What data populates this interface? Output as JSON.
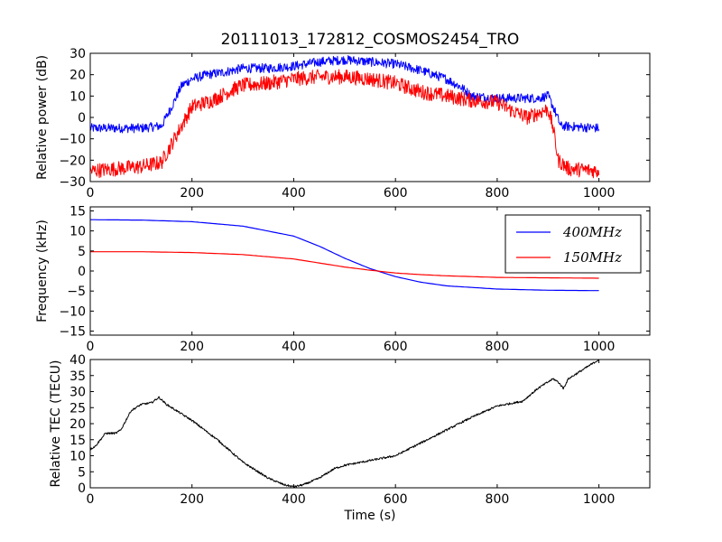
{
  "title": "20111013_172812_COSMOS2454_TRO",
  "colors": {
    "blue": "#0000ff",
    "red": "#ff0000",
    "black": "#000000"
  },
  "chart_data": [
    {
      "type": "line",
      "ylabel": "Relative power (dB)",
      "xlim": [
        0,
        1100
      ],
      "ylim": [
        -30,
        30
      ],
      "xticks": [
        0,
        200,
        400,
        600,
        800,
        1000
      ],
      "yticks": [
        -30,
        -20,
        -10,
        0,
        10,
        20,
        30
      ],
      "series": [
        {
          "color": "#0000ff",
          "noise": 2.2,
          "points": [
            [
              0,
              -5
            ],
            [
              100,
              -5
            ],
            [
              140,
              -4
            ],
            [
              160,
              5
            ],
            [
              180,
              15
            ],
            [
              200,
              18
            ],
            [
              230,
              20
            ],
            [
              260,
              21
            ],
            [
              300,
              23
            ],
            [
              350,
              23
            ],
            [
              400,
              24
            ],
            [
              450,
              26
            ],
            [
              500,
              27
            ],
            [
              550,
              26
            ],
            [
              600,
              25
            ],
            [
              650,
              22
            ],
            [
              700,
              18
            ],
            [
              730,
              14
            ],
            [
              750,
              10
            ],
            [
              800,
              9
            ],
            [
              850,
              9
            ],
            [
              880,
              9
            ],
            [
              900,
              10
            ],
            [
              910,
              5
            ],
            [
              925,
              -4
            ],
            [
              1000,
              -5
            ]
          ]
        },
        {
          "color": "#ff0000",
          "noise": 3.5,
          "points": [
            [
              0,
              -25
            ],
            [
              50,
              -24
            ],
            [
              100,
              -23
            ],
            [
              140,
              -21
            ],
            [
              170,
              -8
            ],
            [
              200,
              5
            ],
            [
              240,
              8
            ],
            [
              280,
              13
            ],
            [
              300,
              15
            ],
            [
              350,
              16
            ],
            [
              400,
              18
            ],
            [
              450,
              19
            ],
            [
              500,
              19
            ],
            [
              550,
              18
            ],
            [
              600,
              16
            ],
            [
              650,
              12
            ],
            [
              700,
              10
            ],
            [
              750,
              8
            ],
            [
              800,
              7
            ],
            [
              830,
              3
            ],
            [
              860,
              0
            ],
            [
              900,
              4
            ],
            [
              910,
              -5
            ],
            [
              920,
              -20
            ],
            [
              940,
              -24
            ],
            [
              1000,
              -25
            ]
          ]
        }
      ]
    },
    {
      "type": "line",
      "ylabel": "Frequency (kHz)",
      "xlim": [
        0,
        1100
      ],
      "ylim": [
        -16,
        16
      ],
      "xticks": [
        0,
        200,
        400,
        600,
        800,
        1000
      ],
      "yticks": [
        -15,
        -10,
        -5,
        0,
        5,
        10,
        15
      ],
      "legend_position": "top-right",
      "series": [
        {
          "name": "400MHz",
          "color": "#0000ff",
          "points": [
            [
              0,
              12.8
            ],
            [
              100,
              12.7
            ],
            [
              200,
              12.3
            ],
            [
              300,
              11.2
            ],
            [
              400,
              8.7
            ],
            [
              450,
              6.2
            ],
            [
              500,
              3.2
            ],
            [
              550,
              0.6
            ],
            [
              600,
              -1.4
            ],
            [
              650,
              -2.8
            ],
            [
              700,
              -3.7
            ],
            [
              800,
              -4.5
            ],
            [
              900,
              -4.8
            ],
            [
              1000,
              -4.9
            ]
          ]
        },
        {
          "name": "150MHz",
          "color": "#ff0000",
          "points": [
            [
              0,
              4.8
            ],
            [
              100,
              4.8
            ],
            [
              200,
              4.6
            ],
            [
              300,
              4.1
            ],
            [
              400,
              3.0
            ],
            [
              450,
              2.0
            ],
            [
              500,
              1.0
            ],
            [
              550,
              0.2
            ],
            [
              600,
              -0.5
            ],
            [
              650,
              -0.9
            ],
            [
              700,
              -1.2
            ],
            [
              800,
              -1.6
            ],
            [
              900,
              -1.7
            ],
            [
              1000,
              -1.8
            ]
          ]
        }
      ]
    },
    {
      "type": "line",
      "ylabel": "Relative TEC (TECU)",
      "xlabel": "Time (s)",
      "xlim": [
        0,
        1100
      ],
      "ylim": [
        0,
        40
      ],
      "xticks": [
        0,
        200,
        400,
        600,
        800,
        1000
      ],
      "yticks": [
        0,
        5,
        10,
        15,
        20,
        25,
        30,
        35,
        40
      ],
      "series": [
        {
          "color": "#000000",
          "noise": 0.3,
          "points": [
            [
              0,
              12
            ],
            [
              10,
              13
            ],
            [
              20,
              15
            ],
            [
              30,
              17
            ],
            [
              50,
              17
            ],
            [
              60,
              18
            ],
            [
              70,
              21
            ],
            [
              80,
              24
            ],
            [
              100,
              26
            ],
            [
              120,
              26.5
            ],
            [
              135,
              28.2
            ],
            [
              150,
              26
            ],
            [
              200,
              21
            ],
            [
              250,
              15
            ],
            [
              300,
              8
            ],
            [
              350,
              3
            ],
            [
              380,
              1
            ],
            [
              400,
              0.3
            ],
            [
              420,
              1
            ],
            [
              450,
              3
            ],
            [
              480,
              6
            ],
            [
              500,
              7
            ],
            [
              550,
              8.5
            ],
            [
              600,
              10
            ],
            [
              650,
              14
            ],
            [
              700,
              18
            ],
            [
              750,
              22
            ],
            [
              800,
              25.5
            ],
            [
              850,
              27
            ],
            [
              880,
              31
            ],
            [
              900,
              33
            ],
            [
              910,
              34
            ],
            [
              920,
              33
            ],
            [
              930,
              31
            ],
            [
              940,
              34
            ],
            [
              960,
              36
            ],
            [
              980,
              38
            ],
            [
              1000,
              40
            ]
          ]
        }
      ]
    }
  ]
}
